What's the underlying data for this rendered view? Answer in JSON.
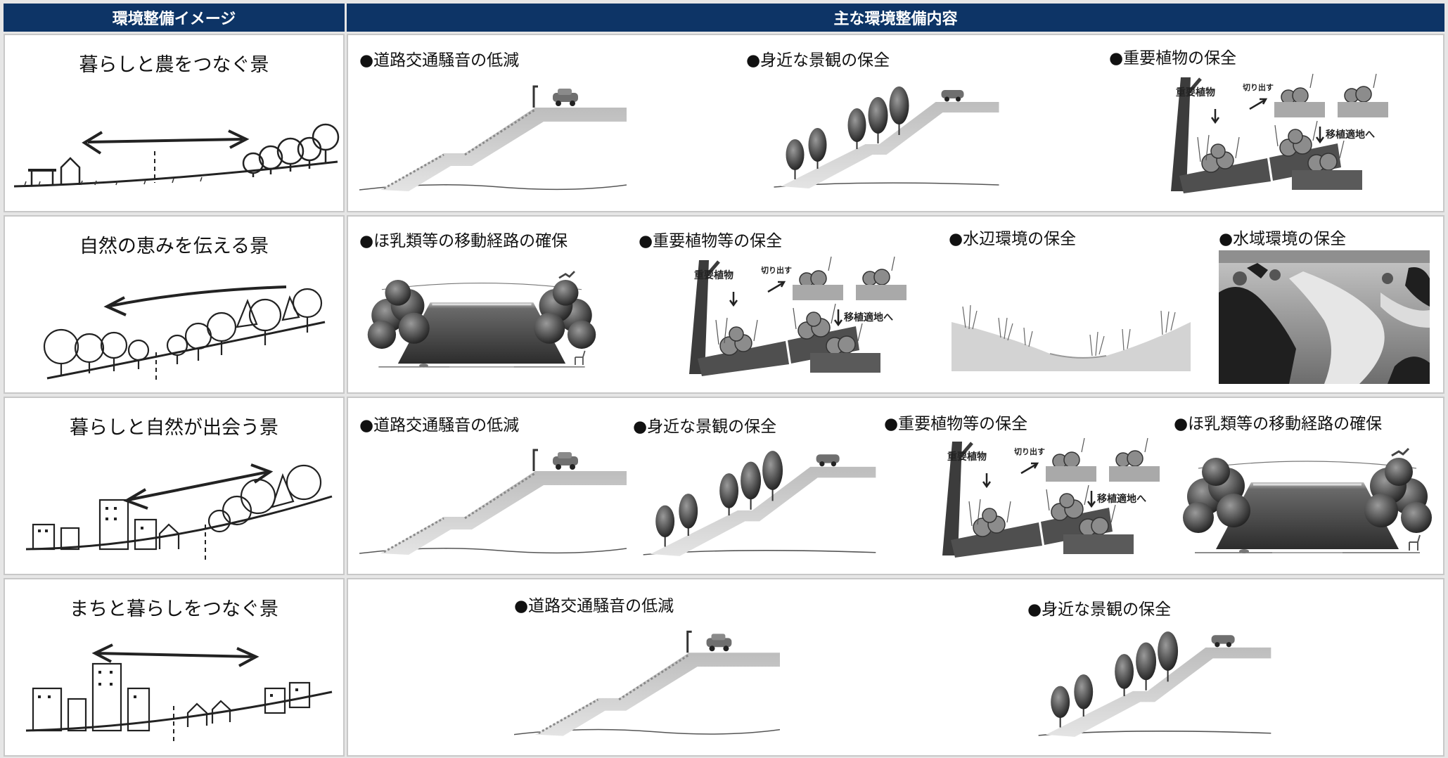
{
  "header": {
    "left": "環境整備イメージ",
    "right": "主な環境整備内容"
  },
  "rows": [
    {
      "label": "暮らしと農をつなぐ景",
      "items": [
        "●道路交通騒音の低減",
        "●身近な景観の保全",
        "●重要植物の保全"
      ]
    },
    {
      "label": "自然の恵みを伝える景",
      "items": [
        "●ほ乳類等の移動経路の確保",
        "●重要植物等の保全",
        "●水辺環境の保全",
        "●水域環境の保全"
      ]
    },
    {
      "label": "暮らしと自然が出会う景",
      "items": [
        "●道路交通騒音の低減",
        "●身近な景観の保全",
        "●重要植物等の保全",
        "●ほ乳類等の移動経路の確保"
      ]
    },
    {
      "label": "まちと暮らしをつなぐ景",
      "items": [
        "●道路交通騒音の低減",
        "●身近な景観の保全"
      ]
    }
  ],
  "diagram": {
    "plant": "重要植物",
    "cut": "切り出す",
    "move": "移植適地へ"
  }
}
